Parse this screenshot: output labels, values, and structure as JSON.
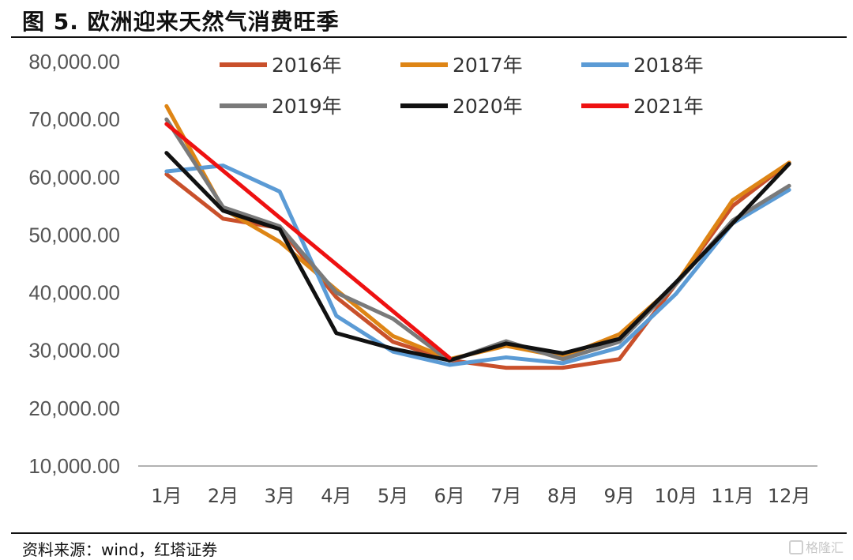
{
  "figure_title": "图 5. 欧洲迎来天然气消费旺季",
  "source_text": "资料来源：wind，红塔证券",
  "watermark_text": "格隆汇",
  "chart_data": {
    "type": "line",
    "categories": [
      "1月",
      "2月",
      "3月",
      "4月",
      "5月",
      "6月",
      "7月",
      "8月",
      "9月",
      "10月",
      "11月",
      "12月"
    ],
    "y_ticks": [
      "10,000.00",
      "20,000.00",
      "30,000.00",
      "40,000.00",
      "50,000.00",
      "60,000.00",
      "70,000.00",
      "80,000.00"
    ],
    "ylim": [
      10000,
      80000
    ],
    "grid": false,
    "legend_position": "top",
    "series": [
      {
        "name": "2016年",
        "color": "#c9502b",
        "values": [
          60500,
          52800,
          51200,
          39200,
          31500,
          28300,
          27000,
          27000,
          28500,
          41500,
          55000,
          62500
        ]
      },
      {
        "name": "2017年",
        "color": "#de8515",
        "values": [
          72300,
          54500,
          48800,
          40500,
          32500,
          28500,
          30800,
          28900,
          32800,
          41500,
          56000,
          62500
        ]
      },
      {
        "name": "2018年",
        "color": "#5b9bd5",
        "values": [
          61000,
          62000,
          57500,
          36000,
          29800,
          27500,
          28800,
          27800,
          30500,
          39800,
          52000,
          57800
        ]
      },
      {
        "name": "2019年",
        "color": "#7a7a7a",
        "values": [
          70000,
          54800,
          51500,
          40000,
          35500,
          28200,
          31600,
          28500,
          31500,
          41500,
          52500,
          58500
        ]
      },
      {
        "name": "2020年",
        "color": "#111111",
        "values": [
          64200,
          54200,
          51000,
          33000,
          30300,
          28300,
          31200,
          29500,
          32000,
          41800,
          52000,
          62300
        ]
      },
      {
        "name": "2021年",
        "color": "#ee1111",
        "values": [
          69200,
          null,
          null,
          null,
          null,
          28700,
          null,
          null,
          null,
          null,
          null,
          null
        ]
      }
    ]
  }
}
